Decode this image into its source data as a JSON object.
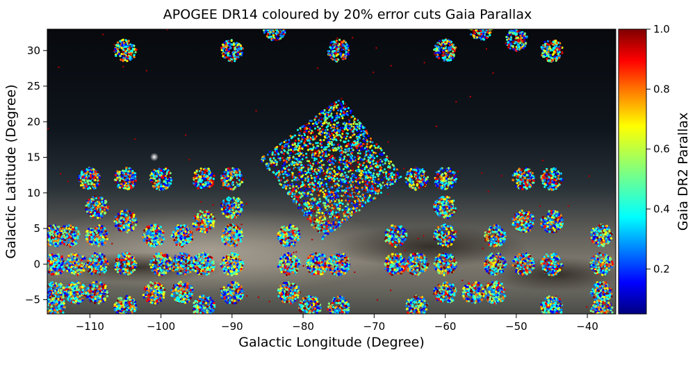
{
  "chart_data": {
    "type": "scatter",
    "title": "APOGEE DR14 coloured by 20% error cuts Gaia Parallax",
    "xlabel": "Galactic Longitude (Degree)",
    "ylabel": "Galactic Latitude (Degree)",
    "xlim": [
      -116,
      -36
    ],
    "ylim": [
      -7,
      33
    ],
    "xticks": [
      -110,
      -100,
      -90,
      -80,
      -70,
      -60,
      -50,
      -40
    ],
    "yticks": [
      -5,
      0,
      5,
      10,
      15,
      20,
      25,
      30
    ],
    "x_tick_labels": [
      "−110",
      "−100",
      "−90",
      "−80",
      "−70",
      "−60",
      "−50",
      "−40"
    ],
    "y_tick_labels": [
      "−5",
      "0",
      "5",
      "10",
      "15",
      "20",
      "25",
      "30"
    ],
    "background": "optical Milky Way image",
    "colorbar": {
      "label": "Gaia DR2 Parallax",
      "range": [
        0.05,
        1.0
      ],
      "ticks": [
        0.2,
        0.4,
        0.6,
        0.8,
        1.0
      ],
      "tick_labels": [
        "0.2",
        "0.4",
        "0.6",
        "0.8",
        "1.0"
      ],
      "colormap": "jet",
      "colors": [
        "#00007f",
        "#0000ff",
        "#007fff",
        "#00ffff",
        "#7fff7f",
        "#ffff00",
        "#ff7f00",
        "#ff0000",
        "#7f0000"
      ]
    },
    "fields": [
      {
        "l": -105,
        "b": 30
      },
      {
        "l": -90,
        "b": 30
      },
      {
        "l": -75,
        "b": 30
      },
      {
        "l": -60,
        "b": 30
      },
      {
        "l": -45,
        "b": 30
      },
      {
        "l": -84,
        "b": 33
      },
      {
        "l": -55,
        "b": 33
      },
      {
        "l": -50,
        "b": 31.5
      },
      {
        "l": -110,
        "b": 12
      },
      {
        "l": -105,
        "b": 12
      },
      {
        "l": -100,
        "b": 12
      },
      {
        "l": -94,
        "b": 12
      },
      {
        "l": -90,
        "b": 12
      },
      {
        "l": -64,
        "b": 12
      },
      {
        "l": -60,
        "b": 12
      },
      {
        "l": -49,
        "b": 12
      },
      {
        "l": -45,
        "b": 12
      },
      {
        "l": -109,
        "b": 8
      },
      {
        "l": -90,
        "b": 8
      },
      {
        "l": -60,
        "b": 8
      },
      {
        "l": -105,
        "b": 6
      },
      {
        "l": -94,
        "b": 6
      },
      {
        "l": -49,
        "b": 6
      },
      {
        "l": -45,
        "b": 6
      },
      {
        "l": -115,
        "b": 4
      },
      {
        "l": -113,
        "b": 4
      },
      {
        "l": -109,
        "b": 4
      },
      {
        "l": -101,
        "b": 4
      },
      {
        "l": -97,
        "b": 4
      },
      {
        "l": -90,
        "b": 4
      },
      {
        "l": -82,
        "b": 4
      },
      {
        "l": -67,
        "b": 4
      },
      {
        "l": -60,
        "b": 4
      },
      {
        "l": -53,
        "b": 4
      },
      {
        "l": -38,
        "b": 4
      },
      {
        "l": -115,
        "b": 0
      },
      {
        "l": -112,
        "b": 0
      },
      {
        "l": -109,
        "b": 0
      },
      {
        "l": -105,
        "b": 0
      },
      {
        "l": -100,
        "b": 0
      },
      {
        "l": -97,
        "b": 0
      },
      {
        "l": -94,
        "b": 0
      },
      {
        "l": -90,
        "b": 0
      },
      {
        "l": -82,
        "b": 0
      },
      {
        "l": -78,
        "b": 0
      },
      {
        "l": -75,
        "b": 0
      },
      {
        "l": -67,
        "b": 0
      },
      {
        "l": -64,
        "b": 0
      },
      {
        "l": -60,
        "b": 0
      },
      {
        "l": -53,
        "b": 0
      },
      {
        "l": -49,
        "b": 0
      },
      {
        "l": -45,
        "b": 0
      },
      {
        "l": -38,
        "b": 0
      },
      {
        "l": -115,
        "b": -4
      },
      {
        "l": -112,
        "b": -4
      },
      {
        "l": -109,
        "b": -4
      },
      {
        "l": -101,
        "b": -4
      },
      {
        "l": -97,
        "b": -4
      },
      {
        "l": -90,
        "b": -4
      },
      {
        "l": -82,
        "b": -4
      },
      {
        "l": -60,
        "b": -4
      },
      {
        "l": -56,
        "b": -4
      },
      {
        "l": -53,
        "b": -4
      },
      {
        "l": -38,
        "b": -4
      },
      {
        "l": -115,
        "b": -6
      },
      {
        "l": -105,
        "b": -6
      },
      {
        "l": -94,
        "b": -6
      },
      {
        "l": -79,
        "b": -6
      },
      {
        "l": -75,
        "b": -6
      },
      {
        "l": -64,
        "b": -6
      },
      {
        "l": -45,
        "b": -6
      },
      {
        "l": -38,
        "b": -6.5
      }
    ],
    "rotated_grid": {
      "center_l": -76,
      "center_b": 13.5,
      "rows": 5,
      "cols": 5,
      "rotation_deg": 38,
      "cell_deg": 2.9
    }
  }
}
